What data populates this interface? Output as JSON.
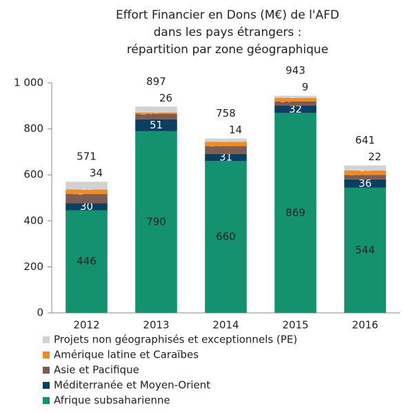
{
  "chart_data": {
    "type": "stacked-bar",
    "title": [
      "Effort Financier en Dons (M€) de l'AFD",
      "dans les pays étrangers :",
      "répartition par zone géographique"
    ],
    "categories": [
      "2012",
      "2013",
      "2014",
      "2015",
      "2016"
    ],
    "series": [
      {
        "name": "Afrique subsaharienne",
        "color": "#149270",
        "values": [
          446,
          790,
          660,
          869,
          544
        ]
      },
      {
        "name": "Méditerranée et Moyen-Orient",
        "color": "#0b3e63",
        "values": [
          30,
          51,
          31,
          32,
          36
        ]
      },
      {
        "name": "Asie et Pacifique",
        "color": "#7b5d52",
        "values": [
          41,
          24,
          34,
          18,
          20
        ]
      },
      {
        "name": "Amérique latine et Caraïbes",
        "color": "#f18a24",
        "values": [
          19,
          6,
          19,
          16,
          19
        ]
      },
      {
        "name": "Projets non géographisés et exceptionnels (PE)",
        "color": "#d2d2d2",
        "values": [
          34,
          26,
          14,
          9,
          22
        ]
      }
    ],
    "totals": [
      571,
      897,
      758,
      943,
      641
    ],
    "ylim": [
      0,
      1000
    ],
    "yticks": [
      0,
      200,
      400,
      600,
      800,
      {
        "value": 1000,
        "label": "1 000"
      }
    ]
  }
}
